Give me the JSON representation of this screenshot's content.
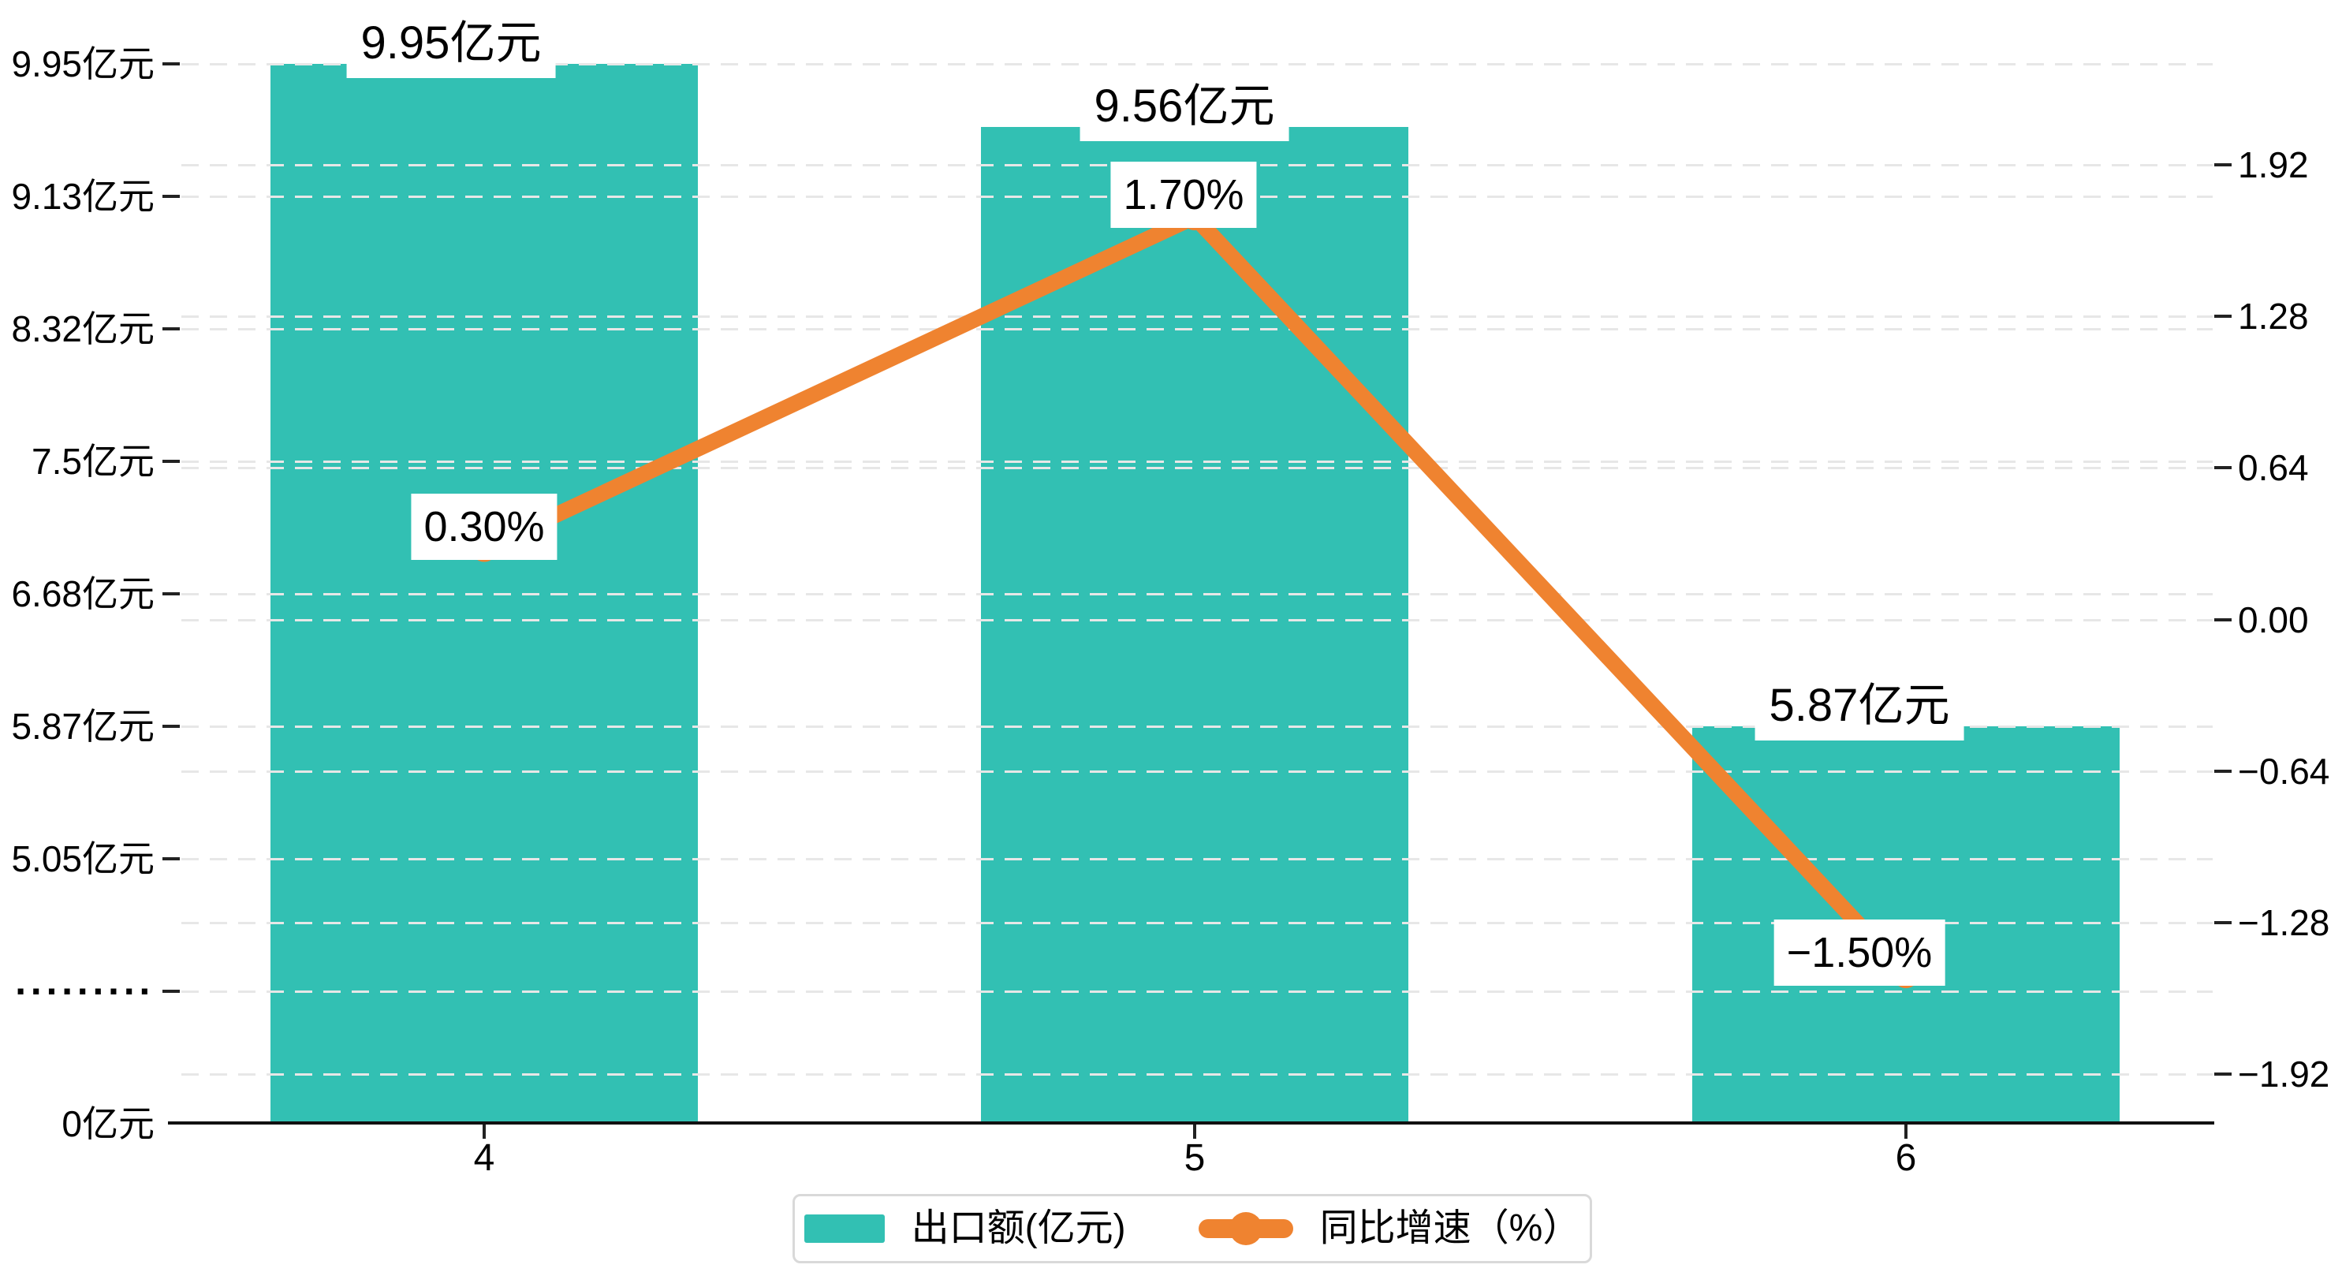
{
  "chart_data": {
    "type": "bar+line",
    "categories": [
      "4",
      "5",
      "6"
    ],
    "series": [
      {
        "name": "出口额(亿元)",
        "type": "bar",
        "axis": "left",
        "values": [
          9.95,
          9.56,
          5.87
        ],
        "data_labels": [
          "9.95亿元",
          "9.56亿元",
          "5.87亿元"
        ],
        "color": "#32c0b3"
      },
      {
        "name": "同比增速（%）",
        "type": "line",
        "axis": "right",
        "values": [
          0.3,
          1.7,
          -1.5
        ],
        "data_labels": [
          "0.30%",
          "1.70%",
          "−1.50%"
        ],
        "color": "#ef8330"
      }
    ],
    "left_axis": {
      "unit": "亿元",
      "broken_axis": true,
      "tick_labels": [
        "9.95亿元",
        "9.13亿元",
        "8.32亿元",
        "7.5亿元",
        "6.68亿元",
        "5.87亿元",
        "5.05亿元",
        "·········",
        "0亿元"
      ],
      "tick_values": [
        9.95,
        9.13,
        8.32,
        7.5,
        6.68,
        5.87,
        5.05,
        null,
        0
      ]
    },
    "right_axis": {
      "tick_labels": [
        "1.92",
        "1.28",
        "0.64",
        "0.00",
        "−0.64",
        "−1.28",
        "−1.92"
      ],
      "max": 1.92,
      "min": -1.92,
      "step": 0.64
    },
    "grid": true,
    "legend_position": "bottom-center",
    "colors": {
      "bar": "#32c0b3",
      "line": "#ef8330",
      "gridline": "#e7e7e7",
      "axis": "#111111",
      "label_box_bg": "#ffffff",
      "legend_border": "#d9d9d9"
    }
  }
}
